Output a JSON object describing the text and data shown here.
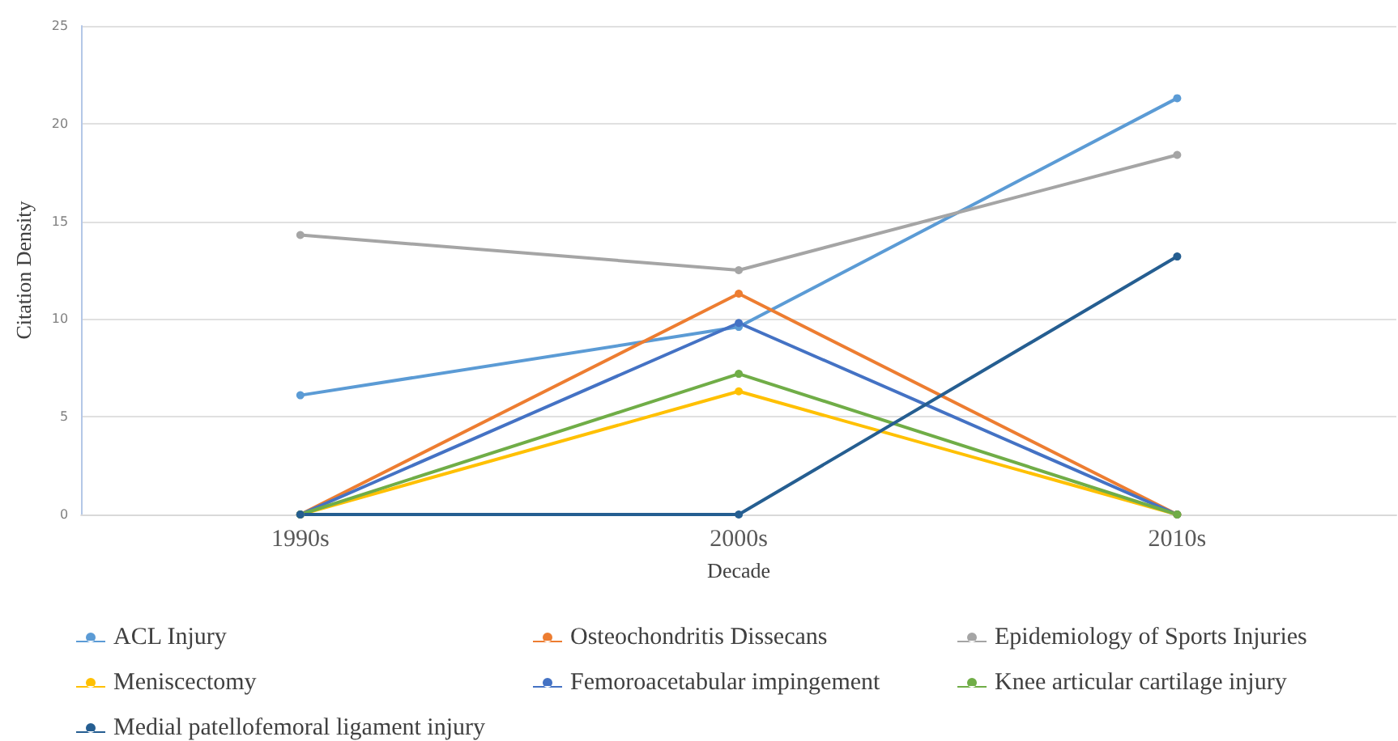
{
  "chart_data": {
    "type": "line",
    "xlabel": "Decade",
    "ylabel": "Citation Density",
    "categories": [
      "1990s",
      "2000s",
      "2010s"
    ],
    "series": [
      {
        "name": "ACL Injury",
        "color": "#5b9bd5",
        "values": [
          6.1,
          9.6,
          21.3
        ]
      },
      {
        "name": "Osteochondritis Dissecans",
        "color": "#ed7d31",
        "values": [
          0,
          11.3,
          0
        ]
      },
      {
        "name": "Epidemiology of Sports Injuries",
        "color": "#a5a5a5",
        "values": [
          14.3,
          12.5,
          18.4
        ]
      },
      {
        "name": "Meniscectomy",
        "color": "#ffc000",
        "values": [
          0,
          6.3,
          0
        ]
      },
      {
        "name": "Femoroacetabular impingement",
        "color": "#4472c4",
        "values": [
          0,
          9.8,
          0
        ]
      },
      {
        "name": "Knee articular cartilage injury",
        "color": "#70ad47",
        "values": [
          0,
          7.2,
          0
        ]
      },
      {
        "name": "Medial patellofemoral ligament injury",
        "color": "#255e91",
        "values": [
          0,
          0,
          13.2
        ]
      }
    ],
    "ylim": [
      0,
      25
    ],
    "yticks": [
      0,
      5,
      10,
      15,
      20,
      25
    ],
    "grid": "y",
    "legend": "bottom",
    "marker": "circle",
    "line_style": "solid"
  }
}
